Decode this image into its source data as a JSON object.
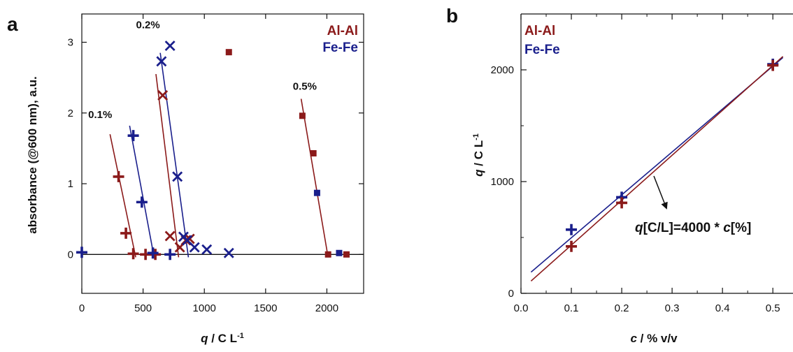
{
  "colors": {
    "al": "#8b1a1a",
    "fe": "#1a1f8c",
    "axis": "#111111"
  },
  "chart_data": [
    {
      "panel": "a",
      "type": "scatter",
      "xlabel_var": "q",
      "xlabel_rest": " / C L",
      "xlabel_sup": "-1",
      "ylabel": "absorbance (@600 nm), a.u.",
      "xlim": [
        0,
        2300
      ],
      "ylim": [
        -0.55,
        3.4
      ],
      "xticks": [
        0,
        500,
        1000,
        1500,
        2000
      ],
      "yticks": [
        0,
        1,
        2,
        3
      ],
      "zero_line": true,
      "legend": [
        {
          "name": "Al-Al",
          "color": "#8b1a1a"
        },
        {
          "name": "Fe-Fe",
          "color": "#1a1f8c"
        }
      ],
      "annotations": [
        {
          "text": "0.1%",
          "x": 150,
          "y": 1.93
        },
        {
          "text": "0.2%",
          "x": 540,
          "y": 3.2
        },
        {
          "text": "0.5%",
          "x": 1820,
          "y": 2.33
        }
      ],
      "series": [
        {
          "name": "Al-Al",
          "group": "0.1%",
          "marker": "plus",
          "color": "#8b1a1a",
          "points": [
            [
              300,
              1.1
            ],
            [
              360,
              0.3
            ],
            [
              420,
              0.01
            ],
            [
              520,
              0.0
            ],
            [
              600,
              0.0
            ]
          ],
          "fit": [
            [
              230,
              1.7
            ],
            [
              440,
              -0.04
            ]
          ]
        },
        {
          "name": "Fe-Fe",
          "group": "0.1%",
          "marker": "plus",
          "color": "#1a1f8c",
          "points": [
            [
              420,
              1.68
            ],
            [
              490,
              0.74
            ],
            [
              580,
              0.02
            ],
            [
              720,
              0.0
            ]
          ],
          "fit": [
            [
              390,
              1.82
            ],
            [
              590,
              -0.04
            ]
          ]
        },
        {
          "name": "Al-Al",
          "group": "0.2%",
          "marker": "x",
          "color": "#8b1a1a",
          "points": [
            [
              660,
              2.25
            ],
            [
              720,
              0.26
            ],
            [
              800,
              0.1
            ],
            [
              850,
              0.2
            ],
            [
              880,
              0.22
            ]
          ],
          "fit": [
            [
              605,
              2.55
            ],
            [
              790,
              -0.04
            ]
          ]
        },
        {
          "name": "Fe-Fe",
          "group": "0.2%",
          "marker": "x",
          "color": "#1a1f8c",
          "points": [
            [
              650,
              2.73
            ],
            [
              720,
              2.95
            ],
            [
              780,
              1.1
            ],
            [
              830,
              0.25
            ],
            [
              860,
              0.2
            ],
            [
              920,
              0.1
            ],
            [
              1020,
              0.07
            ],
            [
              1200,
              0.02
            ]
          ],
          "fit": [
            [
              640,
              2.85
            ],
            [
              870,
              -0.04
            ]
          ]
        },
        {
          "name": "Al-Al",
          "group": "0.5%",
          "marker": "square",
          "color": "#8b1a1a",
          "points": [
            [
              1200,
              2.86
            ],
            [
              1800,
              1.96
            ],
            [
              1890,
              1.43
            ],
            [
              2010,
              0.0
            ],
            [
              2160,
              0.0
            ]
          ],
          "fit": [
            [
              1790,
              2.2
            ],
            [
              2010,
              -0.04
            ]
          ]
        },
        {
          "name": "Fe-Fe",
          "group": "0.5%",
          "marker": "square",
          "color": "#1a1f8c",
          "points": [
            [
              1920,
              0.87
            ],
            [
              2100,
              0.02
            ]
          ],
          "fit": []
        },
        {
          "name": "Fe-Fe",
          "group": "",
          "marker": "plus",
          "color": "#1a1f8c",
          "points": [
            [
              0,
              0.03
            ]
          ],
          "fit": []
        }
      ]
    },
    {
      "panel": "b",
      "type": "scatter",
      "xlabel_var": "c",
      "xlabel_rest": " / % v/v",
      "ylabel_var": "q",
      "ylabel_rest": " / C L",
      "ylabel_sup": "-1",
      "xlim": [
        0,
        0.54
      ],
      "ylim": [
        0,
        2500
      ],
      "xticks": [
        0.0,
        0.1,
        0.2,
        0.3,
        0.4,
        0.5
      ],
      "xtick_labels": [
        "0.0",
        "0.1",
        "0.2",
        "0.3",
        "0.4",
        "0.5"
      ],
      "yticks": [
        0,
        1000,
        2000
      ],
      "legend": [
        {
          "name": "Al-Al",
          "color": "#8b1a1a"
        },
        {
          "name": "Fe-Fe",
          "color": "#1a1f8c"
        }
      ],
      "equation": {
        "var1": "q",
        "mid": "[C/L]=4000 * ",
        "var2": "c",
        "end": "[%]"
      },
      "series": [
        {
          "name": "Fe-Fe",
          "marker": "plus",
          "color": "#1a1f8c",
          "points": [
            [
              0.1,
              570
            ],
            [
              0.2,
              860
            ],
            [
              0.5,
              2050
            ]
          ],
          "fit": [
            [
              0.02,
              190
            ],
            [
              0.52,
              2110
            ]
          ]
        },
        {
          "name": "Al-Al",
          "marker": "plus",
          "color": "#8b1a1a",
          "points": [
            [
              0.1,
              420
            ],
            [
              0.2,
              810
            ],
            [
              0.5,
              2040
            ]
          ],
          "fit": [
            [
              0.02,
              110
            ],
            [
              0.52,
              2120
            ]
          ]
        }
      ]
    }
  ]
}
